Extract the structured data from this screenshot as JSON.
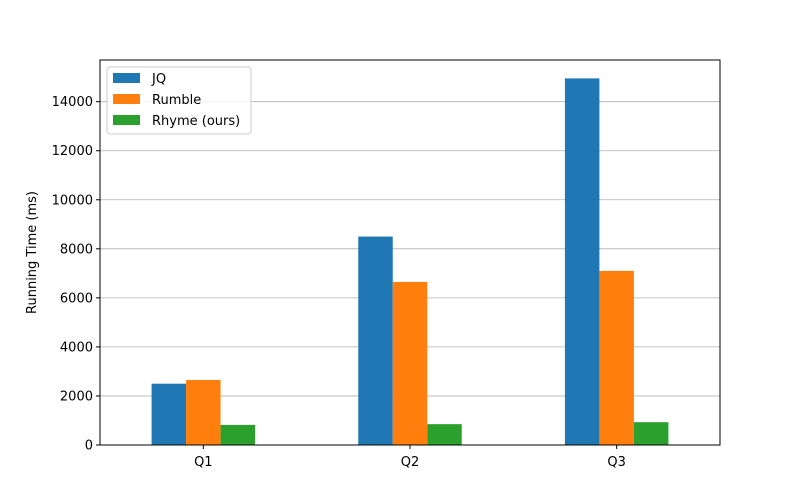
{
  "chart_data": {
    "type": "bar",
    "title": "",
    "xlabel": "",
    "ylabel": "Running Time (ms)",
    "categories": [
      "Q1",
      "Q2",
      "Q3"
    ],
    "series": [
      {
        "name": "JQ",
        "color": "#1f77b4",
        "values": [
          2500,
          8500,
          14950
        ]
      },
      {
        "name": "Rumble",
        "color": "#ff7f0e",
        "values": [
          2650,
          6650,
          7100
        ]
      },
      {
        "name": "Rhyme (ours)",
        "color": "#2ca02c",
        "values": [
          820,
          850,
          930
        ]
      }
    ],
    "ylim": [
      0,
      15700
    ],
    "yticks": [
      0,
      2000,
      4000,
      6000,
      8000,
      10000,
      12000,
      14000
    ],
    "grid": "horizontal",
    "legend_position": "top-left"
  }
}
